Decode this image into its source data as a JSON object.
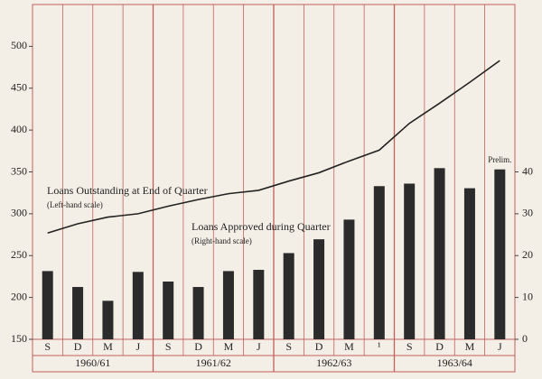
{
  "chart_data": {
    "type": "bar_line",
    "categories": [
      "S",
      "D",
      "M",
      "J",
      "S",
      "D",
      "M",
      "J",
      "S",
      "D",
      "M",
      "¹",
      "S",
      "D",
      "M",
      "J"
    ],
    "groups": [
      "1960/61",
      "1961/62",
      "1962/63",
      "1963/64"
    ],
    "series": [
      {
        "name": "Loans Outstanding at End of Quarter",
        "type": "line",
        "axis": "y",
        "color": "#222222",
        "values": [
          277,
          288,
          296,
          300,
          309,
          317,
          324,
          328,
          339,
          349,
          363,
          376,
          408,
          432,
          457,
          483
        ]
      },
      {
        "name": "Loans Approved during Quarter",
        "type": "bar",
        "axis": "y2",
        "color": "#2b2b2b",
        "values": [
          16.3,
          12.5,
          9.2,
          16.1,
          13.8,
          12.5,
          16.3,
          16.6,
          20.6,
          23.9,
          28.6,
          36.6,
          37.2,
          40.9,
          36.1,
          40.6
        ]
      }
    ],
    "series_notes": [
      "(Left-hand scale)",
      "(Right-hand scale)"
    ],
    "annotation": "Prelim.",
    "ylim": [
      150,
      550
    ],
    "yticks": [
      150,
      200,
      250,
      300,
      350,
      400,
      450,
      500
    ],
    "y2lim": [
      0,
      80
    ],
    "y2ticks": [
      0,
      10,
      20,
      30,
      40
    ],
    "grid_color": "#c0605a"
  }
}
